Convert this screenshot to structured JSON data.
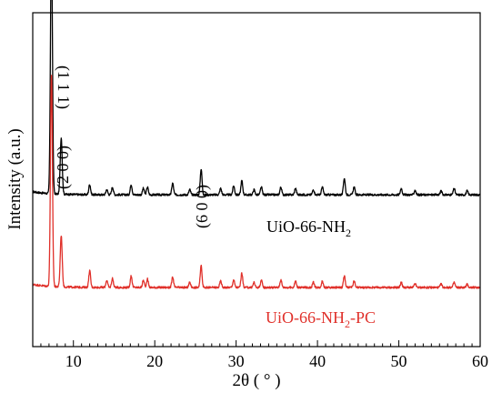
{
  "chart_data": {
    "type": "line",
    "xlabel": "2θ ( ° )",
    "ylabel": "Intensity (a.u.)",
    "xlim": [
      5,
      60
    ],
    "xticks": [
      10,
      20,
      30,
      40,
      50,
      60
    ],
    "y_ticks_shown": false,
    "grid": false,
    "annotations": [
      {
        "text": "(1 1 1)",
        "x": 7.4
      },
      {
        "text": "(2 0 0)",
        "x": 8.5
      },
      {
        "text": "(6 0 0)",
        "x": 25.7
      }
    ],
    "peaks_2theta": [
      7.3,
      8.5,
      12.0,
      14.1,
      14.8,
      17.1,
      18.6,
      19.1,
      22.2,
      24.3,
      25.7,
      28.1,
      29.7,
      30.7,
      32.2,
      33.1,
      35.5,
      37.3,
      39.5,
      40.6,
      43.3,
      44.5,
      50.3,
      52.0,
      55.2,
      56.8,
      58.4
    ],
    "series": [
      {
        "name": "UiO-66-NH2",
        "color": "#000000",
        "offset": 0.36,
        "peak_heights": [
          1.0,
          0.22,
          0.04,
          0.02,
          0.03,
          0.04,
          0.025,
          0.03,
          0.045,
          0.02,
          0.1,
          0.025,
          0.035,
          0.055,
          0.02,
          0.03,
          0.03,
          0.025,
          0.02,
          0.03,
          0.065,
          0.03,
          0.025,
          0.018,
          0.015,
          0.025,
          0.015
        ]
      },
      {
        "name": "UiO-66-NH2-PC",
        "color": "#e0302a",
        "offset": 0.0,
        "peak_heights": [
          0.82,
          0.2,
          0.065,
          0.028,
          0.035,
          0.045,
          0.028,
          0.033,
          0.04,
          0.02,
          0.085,
          0.025,
          0.03,
          0.055,
          0.02,
          0.028,
          0.03,
          0.025,
          0.02,
          0.025,
          0.045,
          0.025,
          0.02,
          0.015,
          0.013,
          0.02,
          0.012
        ]
      }
    ]
  },
  "labels": {
    "series1_main": "UiO-66-NH",
    "series1_sub": "2",
    "series2_main": "UiO-66-NH",
    "series2_sub": "2",
    "series2_suffix": "-PC"
  }
}
